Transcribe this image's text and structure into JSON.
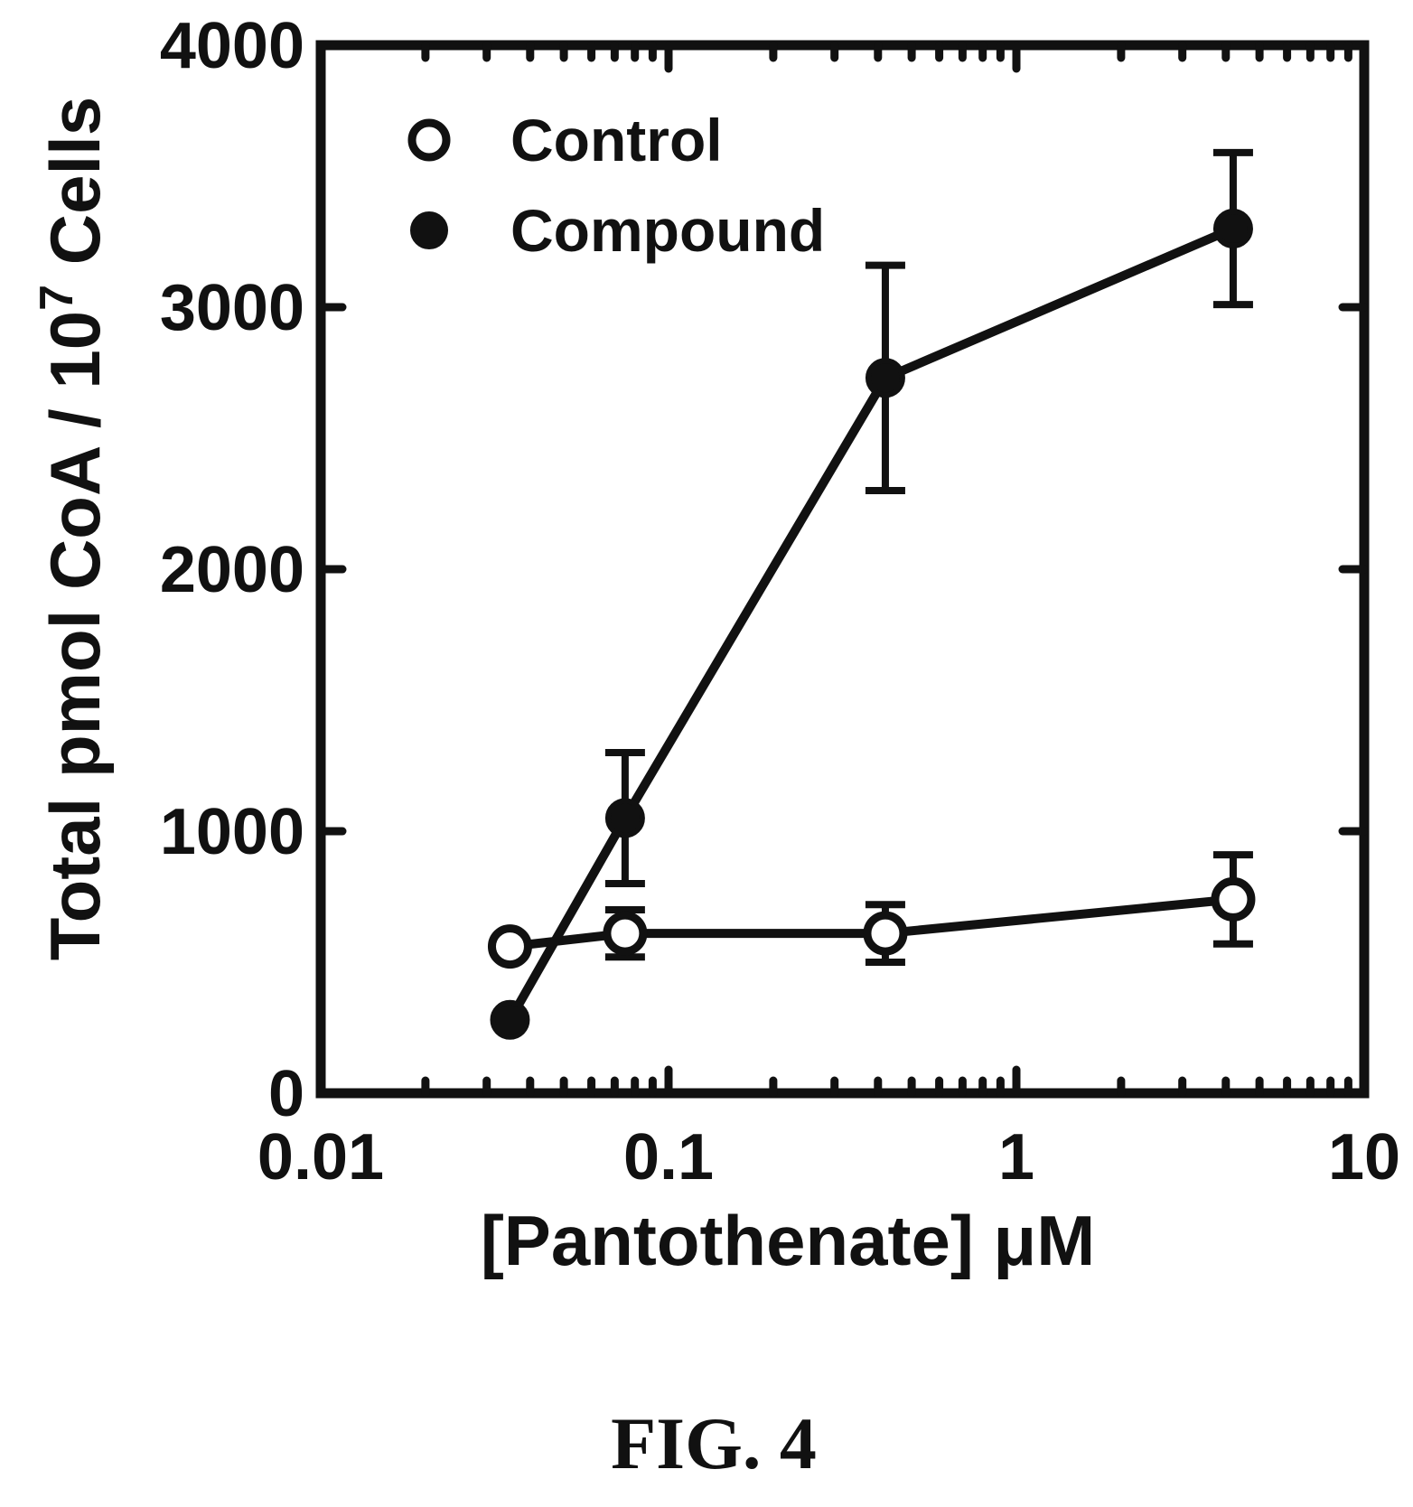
{
  "chart_data": {
    "type": "line",
    "x_scale": "log",
    "xlabel": "[Pantothenate] μM",
    "ylabel": "Total pmol CoA / 10",
    "ylabel_superscript": "7",
    "ylabel_suffix": " Cells",
    "xlim": [
      0.01,
      10
    ],
    "ylim": [
      0,
      4000
    ],
    "x_ticks": [
      0.01,
      0.1,
      1,
      10
    ],
    "x_tick_labels": [
      "0.01",
      "0.1",
      "1",
      "10"
    ],
    "y_ticks": [
      0,
      1000,
      2000,
      3000,
      4000
    ],
    "y_tick_labels": [
      "0",
      "1000",
      "2000",
      "3000",
      "4000"
    ],
    "grid": false,
    "legend_position": "top-left",
    "series": [
      {
        "name": "Control",
        "marker": "open-circle",
        "x": [
          0.035,
          0.075,
          0.42,
          4.2
        ],
        "y": [
          560,
          610,
          610,
          740
        ],
        "error": [
          0,
          90,
          110,
          170
        ]
      },
      {
        "name": "Compound",
        "marker": "filled-circle",
        "x": [
          0.035,
          0.075,
          0.42,
          4.2
        ],
        "y": [
          280,
          1050,
          2730,
          3300
        ],
        "error": [
          0,
          250,
          430,
          290
        ]
      }
    ]
  },
  "caption": "FIG. 4",
  "colors": {
    "ink": "#111111",
    "background": "#ffffff"
  }
}
